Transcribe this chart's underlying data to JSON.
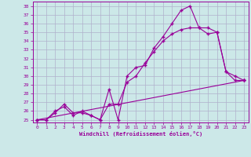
{
  "background_color": "#cce8e8",
  "grid_color": "#b0b0cc",
  "line_color": "#990099",
  "xlabel": "Windchill (Refroidissement éolien,°C)",
  "xlim": [
    -0.5,
    23.5
  ],
  "ylim": [
    24.7,
    38.5
  ],
  "xticks": [
    0,
    1,
    2,
    3,
    4,
    5,
    6,
    7,
    8,
    9,
    10,
    11,
    12,
    13,
    14,
    15,
    16,
    17,
    18,
    19,
    20,
    21,
    22,
    23
  ],
  "yticks": [
    25,
    26,
    27,
    28,
    29,
    30,
    31,
    32,
    33,
    34,
    35,
    36,
    37,
    38
  ],
  "line1_x": [
    0,
    1,
    2,
    3,
    4,
    5,
    6,
    7,
    8,
    9,
    10,
    11,
    12,
    13,
    14,
    15,
    16,
    17,
    18,
    19,
    20,
    21,
    22,
    23
  ],
  "line1_y": [
    25.0,
    25.0,
    26.0,
    26.5,
    25.5,
    26.0,
    25.5,
    25.0,
    28.5,
    25.0,
    30.0,
    31.0,
    31.2,
    33.2,
    34.5,
    36.0,
    37.5,
    38.0,
    35.5,
    34.8,
    35.0,
    30.5,
    29.5,
    29.5
  ],
  "line2_x": [
    0,
    1,
    2,
    3,
    4,
    5,
    6,
    7,
    8,
    9,
    10,
    11,
    12,
    13,
    14,
    15,
    16,
    17,
    18,
    19,
    20,
    21,
    22,
    23
  ],
  "line2_y": [
    25.0,
    25.0,
    25.8,
    26.8,
    25.8,
    25.8,
    25.5,
    25.0,
    26.8,
    26.8,
    29.3,
    30.0,
    31.5,
    32.8,
    34.0,
    34.8,
    35.3,
    35.5,
    35.5,
    35.5,
    35.0,
    30.5,
    30.0,
    29.5
  ],
  "line3_x": [
    0,
    23
  ],
  "line3_y": [
    25.0,
    29.5
  ]
}
